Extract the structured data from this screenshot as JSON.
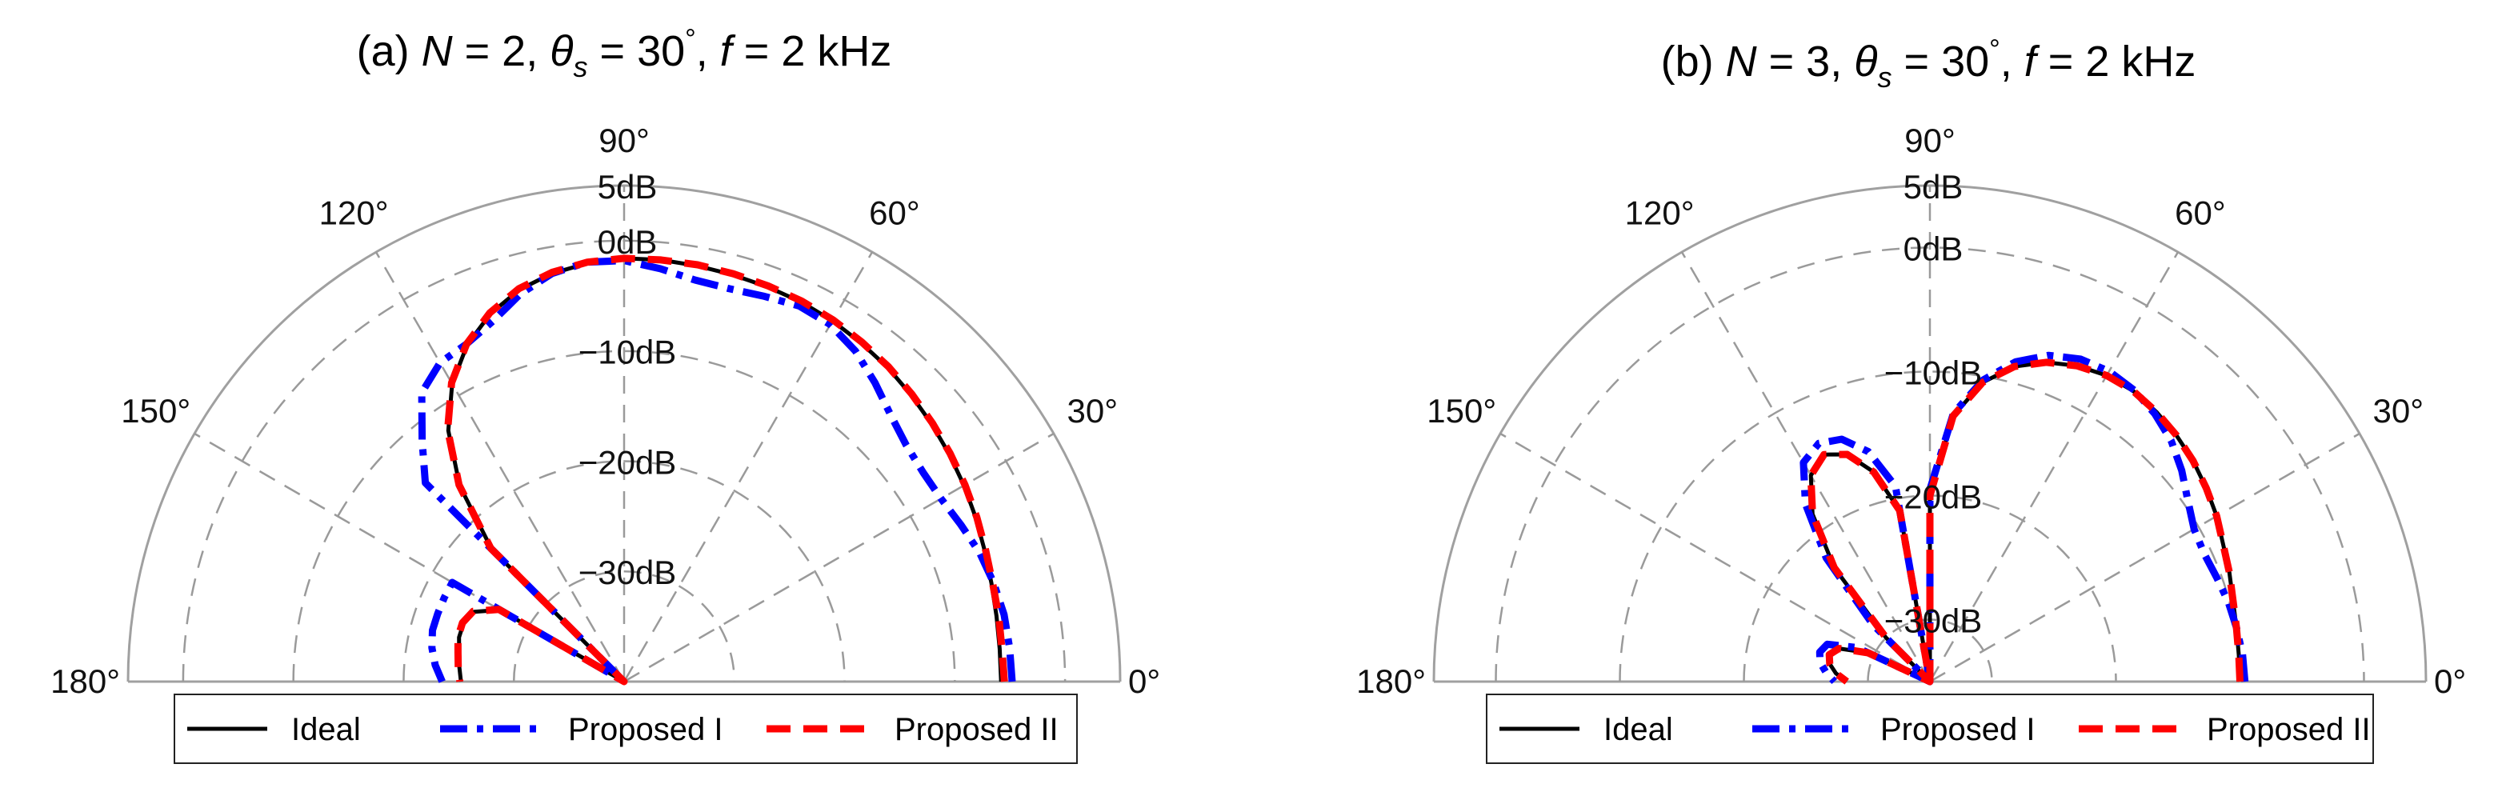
{
  "colors": {
    "ideal": "#000000",
    "proposed1": "#0000ff",
    "proposed2": "#ff0000",
    "outer_ring": "#a0a0a0",
    "grid": "#9a9a9a"
  },
  "chart_data": [
    {
      "type": "line",
      "coordinates": "polar",
      "title": {
        "prefix": "(a) ",
        "N": "N",
        "N_eq": " = 2, ",
        "theta": "θ",
        "theta_sub": "s",
        "theta_eq": " = 30",
        "deg": "°",
        "sep": ", ",
        "f": "f",
        "f_eq": " = 2 kHz"
      },
      "angle_ticks": [
        "0°",
        "30°",
        "60°",
        "90°",
        "120°",
        "150°",
        "180°"
      ],
      "angle_tick_values": [
        0,
        30,
        60,
        90,
        120,
        150,
        180
      ],
      "r_ticks": [
        "5dB",
        "0dB",
        "−10dB",
        "−20dB",
        "−30dB"
      ],
      "r_tick_values": [
        5,
        0,
        -10,
        -20,
        -30
      ],
      "r_range_db": [
        -40,
        5
      ],
      "r_label_angle_deg": 90,
      "grid": true,
      "legend": [
        "Ideal",
        "Proposed I",
        "Proposed II"
      ],
      "legend_location": "bottom",
      "series": [
        {
          "name": "Ideal",
          "style": "solid",
          "theta": [
            0,
            5,
            10,
            15,
            20,
            25,
            30,
            35,
            40,
            45,
            50,
            55,
            60,
            65,
            70,
            75,
            80,
            85,
            90,
            95,
            100,
            105,
            110,
            115,
            120,
            125,
            130,
            135,
            140,
            145,
            150,
            155,
            160,
            165,
            170,
            175,
            180
          ],
          "db": [
            -5.8,
            -5.8,
            -5.7,
            -5.5,
            -5.2,
            -4.8,
            -4.4,
            -4.0,
            -3.6,
            -3.2,
            -2.8,
            -2.5,
            -2.2,
            -2.0,
            -1.9,
            -1.8,
            -1.7,
            -1.6,
            -1.6,
            -1.9,
            -2.4,
            -3.2,
            -4.5,
            -6.3,
            -8.8,
            -12.2,
            -16.8,
            -23.0,
            -40.0,
            -40.0,
            -27.0,
            -25.0,
            -24.5,
            -24.5,
            -24.8,
            -25.0,
            -25.2
          ]
        },
        {
          "name": "Proposed I",
          "style": "dashdot",
          "theta": [
            0,
            5,
            10,
            15,
            20,
            25,
            30,
            35,
            40,
            45,
            50,
            55,
            60,
            65,
            70,
            75,
            80,
            85,
            90,
            95,
            100,
            105,
            110,
            115,
            120,
            125,
            130,
            135,
            140,
            145,
            150,
            155,
            160,
            165,
            170,
            175,
            180
          ],
          "db": [
            -4.8,
            -4.9,
            -5.0,
            -5.3,
            -5.7,
            -6.3,
            -6.8,
            -6.9,
            -6.6,
            -5.8,
            -4.6,
            -3.4,
            -2.6,
            -2.4,
            -2.8,
            -3.1,
            -3.0,
            -2.4,
            -1.8,
            -1.8,
            -2.4,
            -3.6,
            -5.2,
            -6.2,
            -6.6,
            -8.0,
            -11.5,
            -14.5,
            -40.0,
            -40.0,
            -22.0,
            -22.0,
            -22.0,
            -22.0,
            -22.3,
            -22.8,
            -23.5
          ]
        },
        {
          "name": "Proposed II",
          "style": "dashed",
          "theta": [
            0,
            5,
            10,
            15,
            20,
            25,
            30,
            35,
            40,
            45,
            50,
            55,
            60,
            65,
            70,
            75,
            80,
            85,
            90,
            95,
            100,
            105,
            110,
            115,
            120,
            125,
            130,
            135,
            140,
            145,
            150,
            155,
            160,
            165,
            170,
            175,
            180
          ],
          "db": [
            -5.5,
            -5.6,
            -5.5,
            -5.4,
            -5.1,
            -4.7,
            -4.3,
            -3.9,
            -3.5,
            -3.1,
            -2.7,
            -2.4,
            -2.1,
            -1.9,
            -1.8,
            -1.7,
            -1.6,
            -1.6,
            -1.6,
            -1.8,
            -2.3,
            -3.1,
            -4.4,
            -6.2,
            -8.7,
            -12.1,
            -16.7,
            -22.9,
            -40.0,
            -40.0,
            -26.9,
            -24.9,
            -24.4,
            -24.4,
            -24.7,
            -24.9,
            -25.1
          ]
        }
      ]
    },
    {
      "type": "line",
      "coordinates": "polar",
      "title": {
        "prefix": "(b) ",
        "N": "N",
        "N_eq": " = 3, ",
        "theta": "θ",
        "theta_sub": "s",
        "theta_eq": " = 30",
        "deg": "°",
        "sep": ", ",
        "f": "f",
        "f_eq": " = 2 kHz"
      },
      "angle_ticks": [
        "0°",
        "30°",
        "60°",
        "90°",
        "120°",
        "150°",
        "180°"
      ],
      "angle_tick_values": [
        0,
        30,
        60,
        90,
        120,
        150,
        180
      ],
      "r_ticks": [
        "5dB",
        "0dB",
        "−10dB",
        "−20dB",
        "−30dB"
      ],
      "r_tick_values": [
        5,
        0,
        -10,
        -20,
        -30
      ],
      "r_range_db": [
        -35,
        5
      ],
      "r_label_angle_deg": 90,
      "grid": true,
      "legend": [
        "Ideal",
        "Proposed I",
        "Proposed II"
      ],
      "legend_location": "bottom",
      "series": [
        {
          "name": "Ideal",
          "style": "solid",
          "theta": [
            0,
            5,
            10,
            15,
            20,
            25,
            30,
            35,
            40,
            45,
            50,
            55,
            60,
            65,
            70,
            75,
            80,
            85,
            90,
            90.5,
            95,
            100,
            105,
            110,
            115,
            120,
            125,
            130,
            135,
            140,
            145,
            150,
            155,
            160,
            165,
            170,
            175,
            180
          ],
          "db": [
            -10.0,
            -10.0,
            -9.9,
            -9.7,
            -9.3,
            -8.9,
            -8.3,
            -7.8,
            -7.3,
            -6.9,
            -6.6,
            -6.4,
            -6.5,
            -6.9,
            -7.6,
            -8.7,
            -10.5,
            -13.5,
            -20.0,
            -35.0,
            -35.0,
            -21.0,
            -17.5,
            -15.5,
            -14.8,
            -15.8,
            -18.5,
            -23.0,
            -30.0,
            -35.0,
            -35.0,
            -35.0,
            -29.5,
            -27.2,
            -26.6,
            -26.8,
            -27.4,
            -28.3
          ]
        },
        {
          "name": "Proposed I",
          "style": "dashdot",
          "theta": [
            0,
            5,
            10,
            15,
            20,
            25,
            30,
            35,
            40,
            45,
            50,
            55,
            60,
            65,
            70,
            75,
            80,
            85,
            90,
            90.5,
            95,
            100,
            105,
            110,
            115,
            120,
            125,
            130,
            135,
            140,
            145,
            150,
            155,
            160,
            165,
            170,
            175,
            180
          ],
          "db": [
            -9.6,
            -9.7,
            -9.9,
            -10.1,
            -10.4,
            -10.6,
            -10.4,
            -9.6,
            -8.5,
            -7.5,
            -6.8,
            -6.3,
            -6.1,
            -6.3,
            -7.0,
            -8.3,
            -10.3,
            -13.3,
            -19.5,
            -35.0,
            -35.0,
            -19.0,
            -15.8,
            -14.2,
            -13.8,
            -14.6,
            -17.5,
            -22.0,
            -28.5,
            -35.0,
            -35.0,
            -35.0,
            -28.5,
            -26.2,
            -25.8,
            -26.0,
            -26.6,
            -27.3
          ]
        },
        {
          "name": "Proposed II",
          "style": "dashed",
          "theta": [
            0,
            5,
            10,
            15,
            20,
            25,
            30,
            35,
            40,
            45,
            50,
            55,
            60,
            65,
            70,
            75,
            80,
            85,
            90,
            90.5,
            95,
            100,
            105,
            110,
            115,
            120,
            125,
            130,
            135,
            140,
            145,
            150,
            155,
            160,
            165,
            170,
            175,
            180
          ],
          "db": [
            -10.0,
            -10.0,
            -9.9,
            -9.7,
            -9.3,
            -8.9,
            -8.3,
            -7.8,
            -7.3,
            -6.9,
            -6.6,
            -6.4,
            -6.5,
            -6.9,
            -7.6,
            -8.7,
            -10.5,
            -13.5,
            -20.0,
            -35.0,
            -35.0,
            -21.0,
            -17.5,
            -15.5,
            -14.8,
            -15.8,
            -18.5,
            -23.0,
            -30.0,
            -35.0,
            -35.0,
            -35.0,
            -29.5,
            -27.2,
            -26.6,
            -26.8,
            -27.4,
            -28.3
          ]
        }
      ]
    }
  ]
}
